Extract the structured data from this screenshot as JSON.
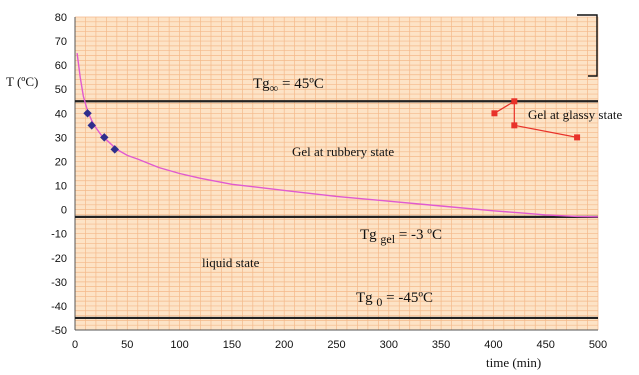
{
  "chart_data": {
    "type": "line",
    "xlabel": "time (min)",
    "ylabel": "T (ºC)",
    "xlim": [
      0,
      500
    ],
    "ylim": [
      -50,
      80
    ],
    "xticks": [
      0,
      50,
      100,
      150,
      200,
      250,
      300,
      350,
      400,
      450,
      500
    ],
    "yticks": [
      -50,
      -40,
      -30,
      -20,
      -10,
      0,
      10,
      20,
      30,
      40,
      50,
      60,
      70,
      80
    ],
    "grid": true,
    "background_color": "#fde3c6",
    "grid_color": "#f4b98a",
    "series": [
      {
        "type": "curve",
        "color": "#e05ad0",
        "x": [
          2,
          5,
          8,
          12,
          16,
          20,
          25,
          30,
          40,
          50,
          60,
          80,
          100,
          120,
          150,
          180,
          200,
          250,
          300,
          350,
          400,
          430,
          450,
          470,
          480,
          500
        ],
        "y": [
          65,
          55,
          47,
          41,
          37,
          34,
          31,
          29,
          25,
          22.5,
          21,
          17.5,
          15,
          13,
          10.5,
          9,
          8,
          5.5,
          3.5,
          1.5,
          -0.5,
          -1.5,
          -2.2,
          -2.6,
          -2.8,
          -3
        ]
      },
      {
        "type": "scatter",
        "color": "#2e2e8c",
        "x": [
          12,
          16,
          28,
          38
        ],
        "y": [
          40,
          35,
          30,
          25
        ]
      },
      {
        "type": "line",
        "color": "#e8322a",
        "x": [
          401,
          420,
          420,
          480
        ],
        "y": [
          40,
          45,
          35,
          30
        ]
      }
    ],
    "hlines": [
      {
        "y": 45,
        "label_main": "Tg",
        "label_sub": "∞",
        "label_value": "= 45ºC"
      },
      {
        "y": -3,
        "label_main": "Tg",
        "label_sub": "gel",
        "label_value": "= -3 ºC"
      },
      {
        "y": -45,
        "label_main": "Tg",
        "label_sub": "0",
        "label_value": "= -45ºC"
      }
    ],
    "regions": [
      {
        "text": "Gel at rubbery state"
      },
      {
        "text": "Gel at glassy state"
      },
      {
        "text": "liquid state"
      }
    ]
  }
}
